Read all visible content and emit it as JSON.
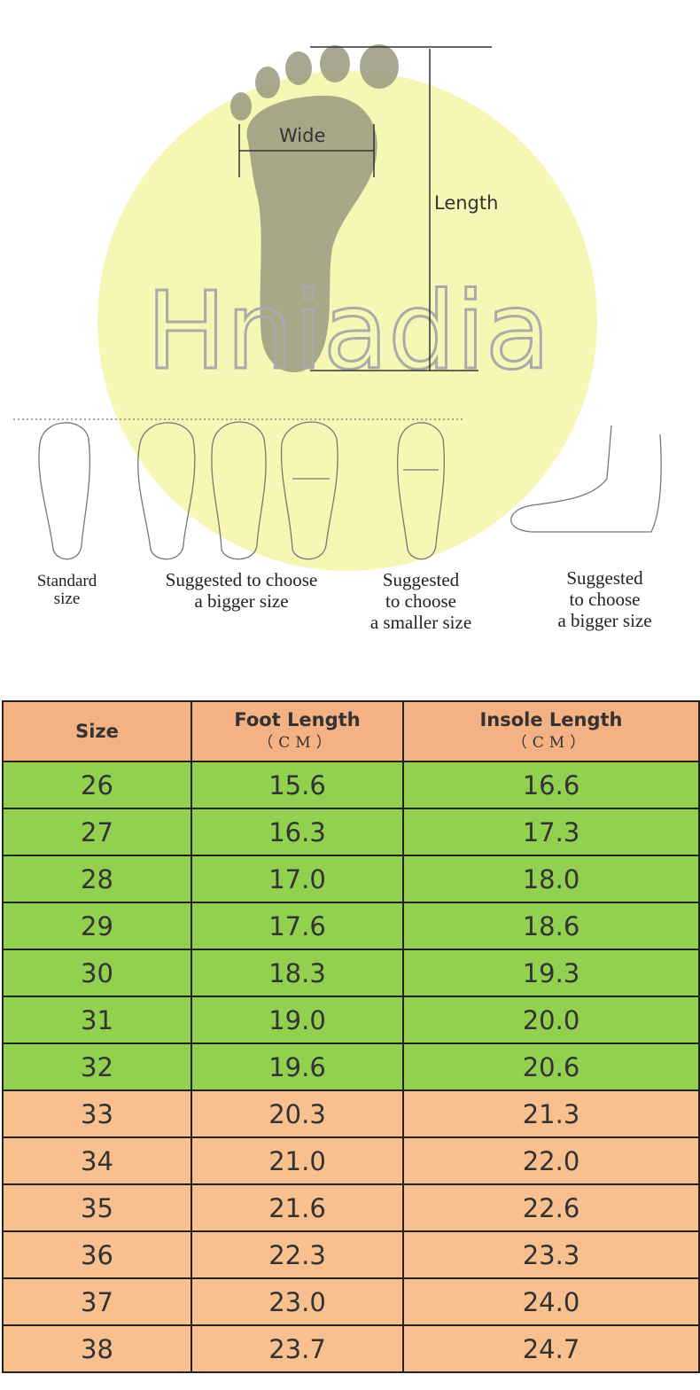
{
  "illustration": {
    "watermark": "Hniadia",
    "wide_label": "Wide",
    "length_label": "Length",
    "captions": [
      {
        "lines": [
          "Standard",
          "size"
        ]
      },
      {
        "lines": [
          "Suggested to choose",
          "a bigger size"
        ]
      },
      {
        "lines": [
          "Suggested",
          "to choose",
          "a smaller size"
        ]
      },
      {
        "lines": [
          "Suggested",
          "to choose",
          "a bigger size"
        ]
      }
    ],
    "colors": {
      "circle": "#f6f7b4",
      "foot": "#9a9a80"
    }
  },
  "table": {
    "headers": [
      {
        "label": "Size",
        "unit": ""
      },
      {
        "label": "Foot Length",
        "unit": "（CM）"
      },
      {
        "label": "Insole Length",
        "unit": "（CM）"
      }
    ],
    "rows": [
      {
        "size": "26",
        "foot": "15.6",
        "insole": "16.6",
        "color": "green"
      },
      {
        "size": "27",
        "foot": "16.3",
        "insole": "17.3",
        "color": "green"
      },
      {
        "size": "28",
        "foot": "17.0",
        "insole": "18.0",
        "color": "green"
      },
      {
        "size": "29",
        "foot": "17.6",
        "insole": "18.6",
        "color": "green"
      },
      {
        "size": "30",
        "foot": "18.3",
        "insole": "19.3",
        "color": "green"
      },
      {
        "size": "31",
        "foot": "19.0",
        "insole": "20.0",
        "color": "green"
      },
      {
        "size": "32",
        "foot": "19.6",
        "insole": "20.6",
        "color": "green"
      },
      {
        "size": "33",
        "foot": "20.3",
        "insole": "21.3",
        "color": "peach"
      },
      {
        "size": "34",
        "foot": "21.0",
        "insole": "22.0",
        "color": "peach"
      },
      {
        "size": "35",
        "foot": "21.6",
        "insole": "22.6",
        "color": "peach"
      },
      {
        "size": "36",
        "foot": "22.3",
        "insole": "23.3",
        "color": "peach"
      },
      {
        "size": "37",
        "foot": "23.0",
        "insole": "24.0",
        "color": "peach"
      },
      {
        "size": "38",
        "foot": "23.7",
        "insole": "24.7",
        "color": "peach"
      }
    ],
    "colors": {
      "header": "#f4b183",
      "green": "#92d050",
      "peach": "#f8c08e"
    }
  }
}
